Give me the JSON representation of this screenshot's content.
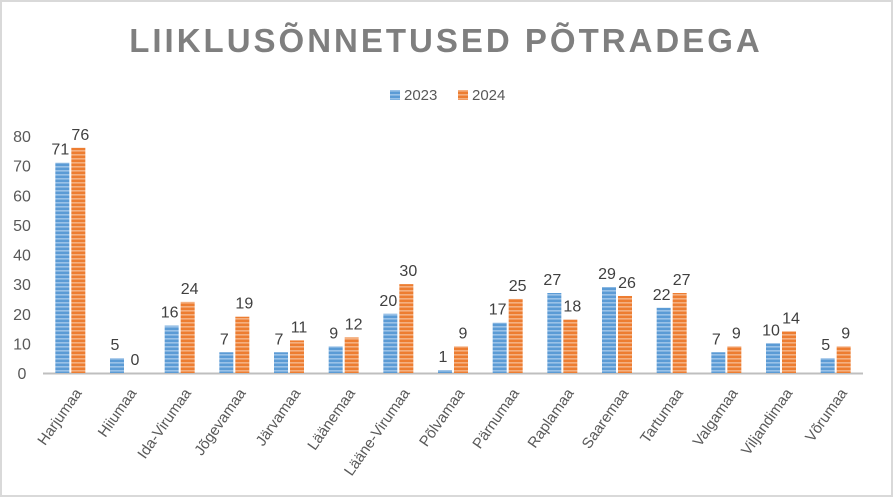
{
  "chart_data": {
    "type": "bar",
    "title": "LIIKLUSÕNNETUSED PÕTRADEGA",
    "xlabel": "",
    "ylabel": "",
    "ylim": [
      0,
      80
    ],
    "yticks": [
      0,
      10,
      20,
      30,
      40,
      50,
      60,
      70,
      80
    ],
    "grid": false,
    "legend": "top",
    "categories": [
      "Harjumaa",
      "Hiiumaa",
      "Ida-Virumaa",
      "Jõgevamaa",
      "Järvamaa",
      "Läänemaa",
      "Lääne-Virumaa",
      "Põlvamaa",
      "Pärnumaa",
      "Raplamaa",
      "Saaremaa",
      "Tartumaa",
      "Valgamaa",
      "Viljandimaa",
      "Võrumaa"
    ],
    "series": [
      {
        "name": "2023",
        "color": "#5b9bd5",
        "values": [
          71,
          5,
          16,
          7,
          7,
          9,
          20,
          1,
          17,
          27,
          29,
          22,
          7,
          10,
          5
        ]
      },
      {
        "name": "2024",
        "color": "#ed7d31",
        "values": [
          76,
          0,
          24,
          19,
          11,
          12,
          30,
          9,
          25,
          18,
          26,
          27,
          9,
          14,
          9
        ]
      }
    ]
  }
}
